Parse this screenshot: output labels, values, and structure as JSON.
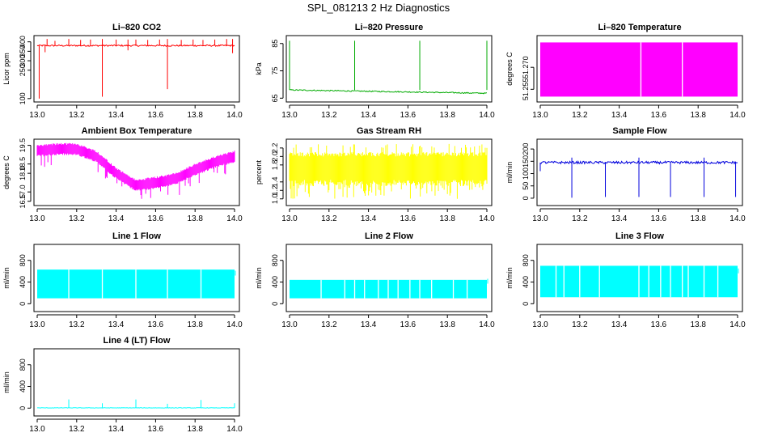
{
  "page": {
    "title": "SPL_081213  2 Hz Diagnostics"
  },
  "chart_data": [
    {
      "id": "co2",
      "type": "line",
      "title": "Li–820 CO2",
      "xlabel": "",
      "ylabel": "Licor ppm",
      "color": "#ff0000",
      "xlim": [
        13.0,
        14.0
      ],
      "ylim": [
        95,
        420
      ],
      "x_ticks": [
        "13.0",
        "13.2",
        "13.4",
        "13.6",
        "13.8",
        "14.0"
      ],
      "y_ticks": [
        100,
        250,
        300,
        350,
        400
      ],
      "pattern": "baseline_spikes",
      "baseline": 380,
      "noise": 4,
      "spikes_up": [
        [
          13.05,
          415
        ],
        [
          13.09,
          405
        ],
        [
          13.16,
          415
        ],
        [
          13.22,
          410
        ],
        [
          13.27,
          412
        ],
        [
          13.33,
          415
        ],
        [
          13.4,
          412
        ],
        [
          13.46,
          412
        ],
        [
          13.5,
          412
        ],
        [
          13.56,
          410
        ],
        [
          13.62,
          412
        ],
        [
          13.66,
          415
        ],
        [
          13.73,
          410
        ],
        [
          13.79,
          412
        ],
        [
          13.84,
          410
        ],
        [
          13.9,
          412
        ],
        [
          13.96,
          415
        ],
        [
          13.99,
          415
        ]
      ],
      "spikes_down": [
        [
          13.01,
          100
        ],
        [
          13.04,
          345
        ],
        [
          13.33,
          110
        ],
        [
          13.46,
          355
        ],
        [
          13.66,
          150
        ],
        [
          13.99,
          340
        ]
      ]
    },
    {
      "id": "pressure",
      "type": "line",
      "title": "Li–820 Pressure",
      "xlabel": "",
      "ylabel": "kPa",
      "color": "#00aa00",
      "xlim": [
        13.0,
        14.0
      ],
      "ylim": [
        64.5,
        87
      ],
      "x_ticks": [
        "13.0",
        "13.2",
        "13.4",
        "13.6",
        "13.8",
        "14.0"
      ],
      "y_ticks": [
        65,
        75,
        85
      ],
      "pattern": "baseline_spikes",
      "baseline_start": 68.0,
      "baseline_end": 66.8,
      "noise": 0.2,
      "spikes_up": [
        [
          13.0,
          86
        ],
        [
          13.33,
          86
        ],
        [
          13.66,
          86
        ],
        [
          14.0,
          86
        ]
      ],
      "spikes_down": []
    },
    {
      "id": "temperature",
      "type": "area",
      "title": "Li–820 Temperature",
      "xlabel": "",
      "ylabel": "degrees C",
      "color": "#ff00ff",
      "xlim": [
        13.0,
        14.0
      ],
      "ylim": [
        51.248,
        51.29
      ],
      "x_ticks": [
        "13.0",
        "13.2",
        "13.4",
        "13.6",
        "13.8",
        "14.0"
      ],
      "y_ticks": [
        "51.255",
        "51.270"
      ],
      "pattern": "band",
      "band_min": 51.25,
      "band_max": 51.287,
      "gaps": [
        13.51,
        13.72
      ]
    },
    {
      "id": "ambient",
      "type": "line",
      "title": "Ambient Box Temperature",
      "xlabel": "",
      "ylabel": "degrees C",
      "color": "#ff00ff",
      "xlim": [
        13.0,
        14.0
      ],
      "ylim": [
        16.4,
        19.7
      ],
      "x_ticks": [
        "13.0",
        "13.2",
        "13.4",
        "13.6",
        "13.8",
        "14.0"
      ],
      "y_ticks": [
        "16.5",
        "17.0",
        "18.0",
        "18.5",
        "19.5"
      ],
      "pattern": "curve_band",
      "curve": [
        [
          13.0,
          19.2
        ],
        [
          13.1,
          19.3
        ],
        [
          13.2,
          19.3
        ],
        [
          13.3,
          18.9
        ],
        [
          13.4,
          18.0
        ],
        [
          13.5,
          17.35
        ],
        [
          13.6,
          17.5
        ],
        [
          13.7,
          17.7
        ],
        [
          13.8,
          18.2
        ],
        [
          13.9,
          18.6
        ],
        [
          14.0,
          18.9
        ]
      ],
      "band_width": 0.45,
      "dips": 1.0
    },
    {
      "id": "rh",
      "type": "area",
      "title": "Gas Stream RH",
      "xlabel": "",
      "ylabel": "percent",
      "color": "#ffff00",
      "xlim": [
        13.0,
        14.0
      ],
      "ylim": [
        0.9,
        2.35
      ],
      "x_ticks": [
        "13.0",
        "13.2",
        "13.4",
        "13.6",
        "13.8",
        "14.0"
      ],
      "y_ticks": [
        "1.0",
        "1.2",
        "1.4",
        "1.8",
        "2.0",
        "2.2"
      ],
      "pattern": "noise_band",
      "band_min": 1.3,
      "band_max": 2.1,
      "spike_min": 1.0,
      "spike_max": 2.3
    },
    {
      "id": "sample",
      "type": "line",
      "title": "Sample Flow",
      "xlabel": "",
      "ylabel": "ml/min",
      "color": "#0000dd",
      "xlim": [
        13.0,
        14.0
      ],
      "ylim": [
        -20,
        230
      ],
      "x_ticks": [
        "13.0",
        "13.2",
        "13.4",
        "13.6",
        "13.8",
        "14.0"
      ],
      "y_ticks": [
        0,
        50,
        100,
        150,
        200
      ],
      "pattern": "baseline_spikes",
      "baseline": 145,
      "noise": 5,
      "spikes_up": [
        [
          13.16,
          165
        ],
        [
          13.5,
          165
        ],
        [
          13.83,
          165
        ]
      ],
      "spikes_down": [
        [
          13.0,
          110
        ],
        [
          13.16,
          2
        ],
        [
          13.33,
          5
        ],
        [
          13.5,
          5
        ],
        [
          13.66,
          5
        ],
        [
          13.83,
          5
        ],
        [
          13.99,
          5
        ]
      ]
    },
    {
      "id": "line1",
      "type": "area",
      "title": "Line 1 Flow",
      "xlabel": "",
      "ylabel": "ml/min",
      "color": "#00ffff",
      "xlim": [
        13.0,
        14.0
      ],
      "ylim": [
        -100,
        1050
      ],
      "x_ticks": [
        "13.0",
        "13.2",
        "13.4",
        "13.6",
        "13.8",
        "14.0"
      ],
      "y_ticks": [
        0,
        400,
        800
      ],
      "pattern": "band",
      "band_min": 100,
      "band_max": 630,
      "end_value": 520,
      "gaps": [
        13.16,
        13.33,
        13.5,
        13.66,
        13.83
      ]
    },
    {
      "id": "line2",
      "type": "area",
      "title": "Line 2 Flow",
      "xlabel": "",
      "ylabel": "ml/min",
      "color": "#00ffff",
      "xlim": [
        13.0,
        14.0
      ],
      "ylim": [
        -100,
        1050
      ],
      "x_ticks": [
        "13.0",
        "13.2",
        "13.4",
        "13.6",
        "13.8",
        "14.0"
      ],
      "y_ticks": [
        0,
        400,
        800
      ],
      "pattern": "band",
      "band_min": 100,
      "band_max": 440,
      "end_value": 370,
      "gaps": [
        13.16,
        13.28,
        13.33,
        13.38,
        13.45,
        13.5,
        13.55,
        13.61,
        13.66,
        13.72,
        13.83,
        13.9
      ]
    },
    {
      "id": "line3",
      "type": "area",
      "title": "Line 3 Flow",
      "xlabel": "",
      "ylabel": "ml/min",
      "color": "#00ffff",
      "xlim": [
        13.0,
        14.0
      ],
      "ylim": [
        -100,
        1050
      ],
      "x_ticks": [
        "13.0",
        "13.2",
        "13.4",
        "13.6",
        "13.8",
        "14.0"
      ],
      "y_ticks": [
        0,
        400,
        800
      ],
      "pattern": "band",
      "band_min": 120,
      "band_max": 700,
      "end_value": 560,
      "gaps": [
        13.08,
        13.12,
        13.2,
        13.3,
        13.5,
        13.55,
        13.61,
        13.66,
        13.72,
        13.75,
        13.83,
        13.9
      ]
    },
    {
      "id": "line4",
      "type": "line",
      "title": "Line 4 (LT) Flow",
      "xlabel": "",
      "ylabel": "ml/min",
      "color": "#00ffff",
      "xlim": [
        13.0,
        14.0
      ],
      "ylim": [
        -100,
        1050
      ],
      "x_ticks": [
        "13.0",
        "13.2",
        "13.4",
        "13.6",
        "13.8",
        "14.0"
      ],
      "y_ticks": [
        0,
        400,
        800
      ],
      "pattern": "baseline_spikes",
      "baseline": 5,
      "noise": 4,
      "spikes_up": [
        [
          13.16,
          160
        ],
        [
          13.33,
          90
        ],
        [
          13.5,
          160
        ],
        [
          13.66,
          80
        ],
        [
          13.83,
          150
        ],
        [
          14.0,
          90
        ]
      ],
      "spikes_down": []
    }
  ]
}
